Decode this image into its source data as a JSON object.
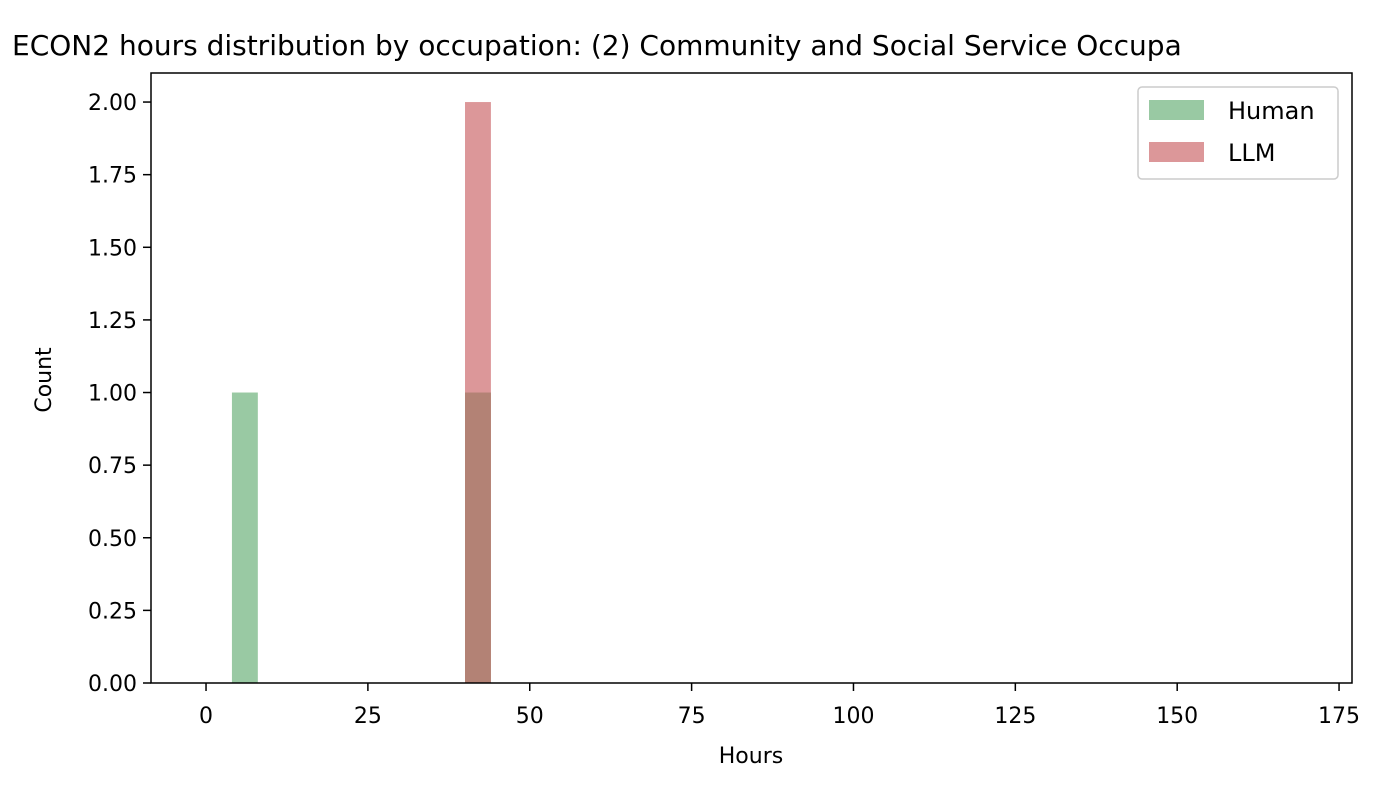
{
  "chart_data": {
    "type": "bar",
    "title": "ECON2 hours distribution by occupation: (2) Community and Social Service Occupa",
    "xlabel": "Hours",
    "ylabel": "Count",
    "xlim": [
      -8.5,
      177
    ],
    "ylim": [
      0,
      2.1
    ],
    "xticks": [
      0,
      25,
      50,
      75,
      100,
      125,
      150,
      175
    ],
    "yticks": [
      "0.00",
      "0.25",
      "0.50",
      "0.75",
      "1.00",
      "1.25",
      "1.50",
      "1.75",
      "2.00"
    ],
    "grid": false,
    "legend_position": "top-right",
    "series": [
      {
        "name": "Human",
        "color": "#99c9a3",
        "bins": [
          {
            "x0": 4,
            "x1": 8,
            "value": 1
          },
          {
            "x0": 40,
            "x1": 44,
            "value": 1
          }
        ]
      },
      {
        "name": "LLM",
        "color": "#dc9799",
        "bins": [
          {
            "x0": 40,
            "x1": 44,
            "value": 2
          }
        ]
      }
    ],
    "overlap_color": "#b38275"
  }
}
